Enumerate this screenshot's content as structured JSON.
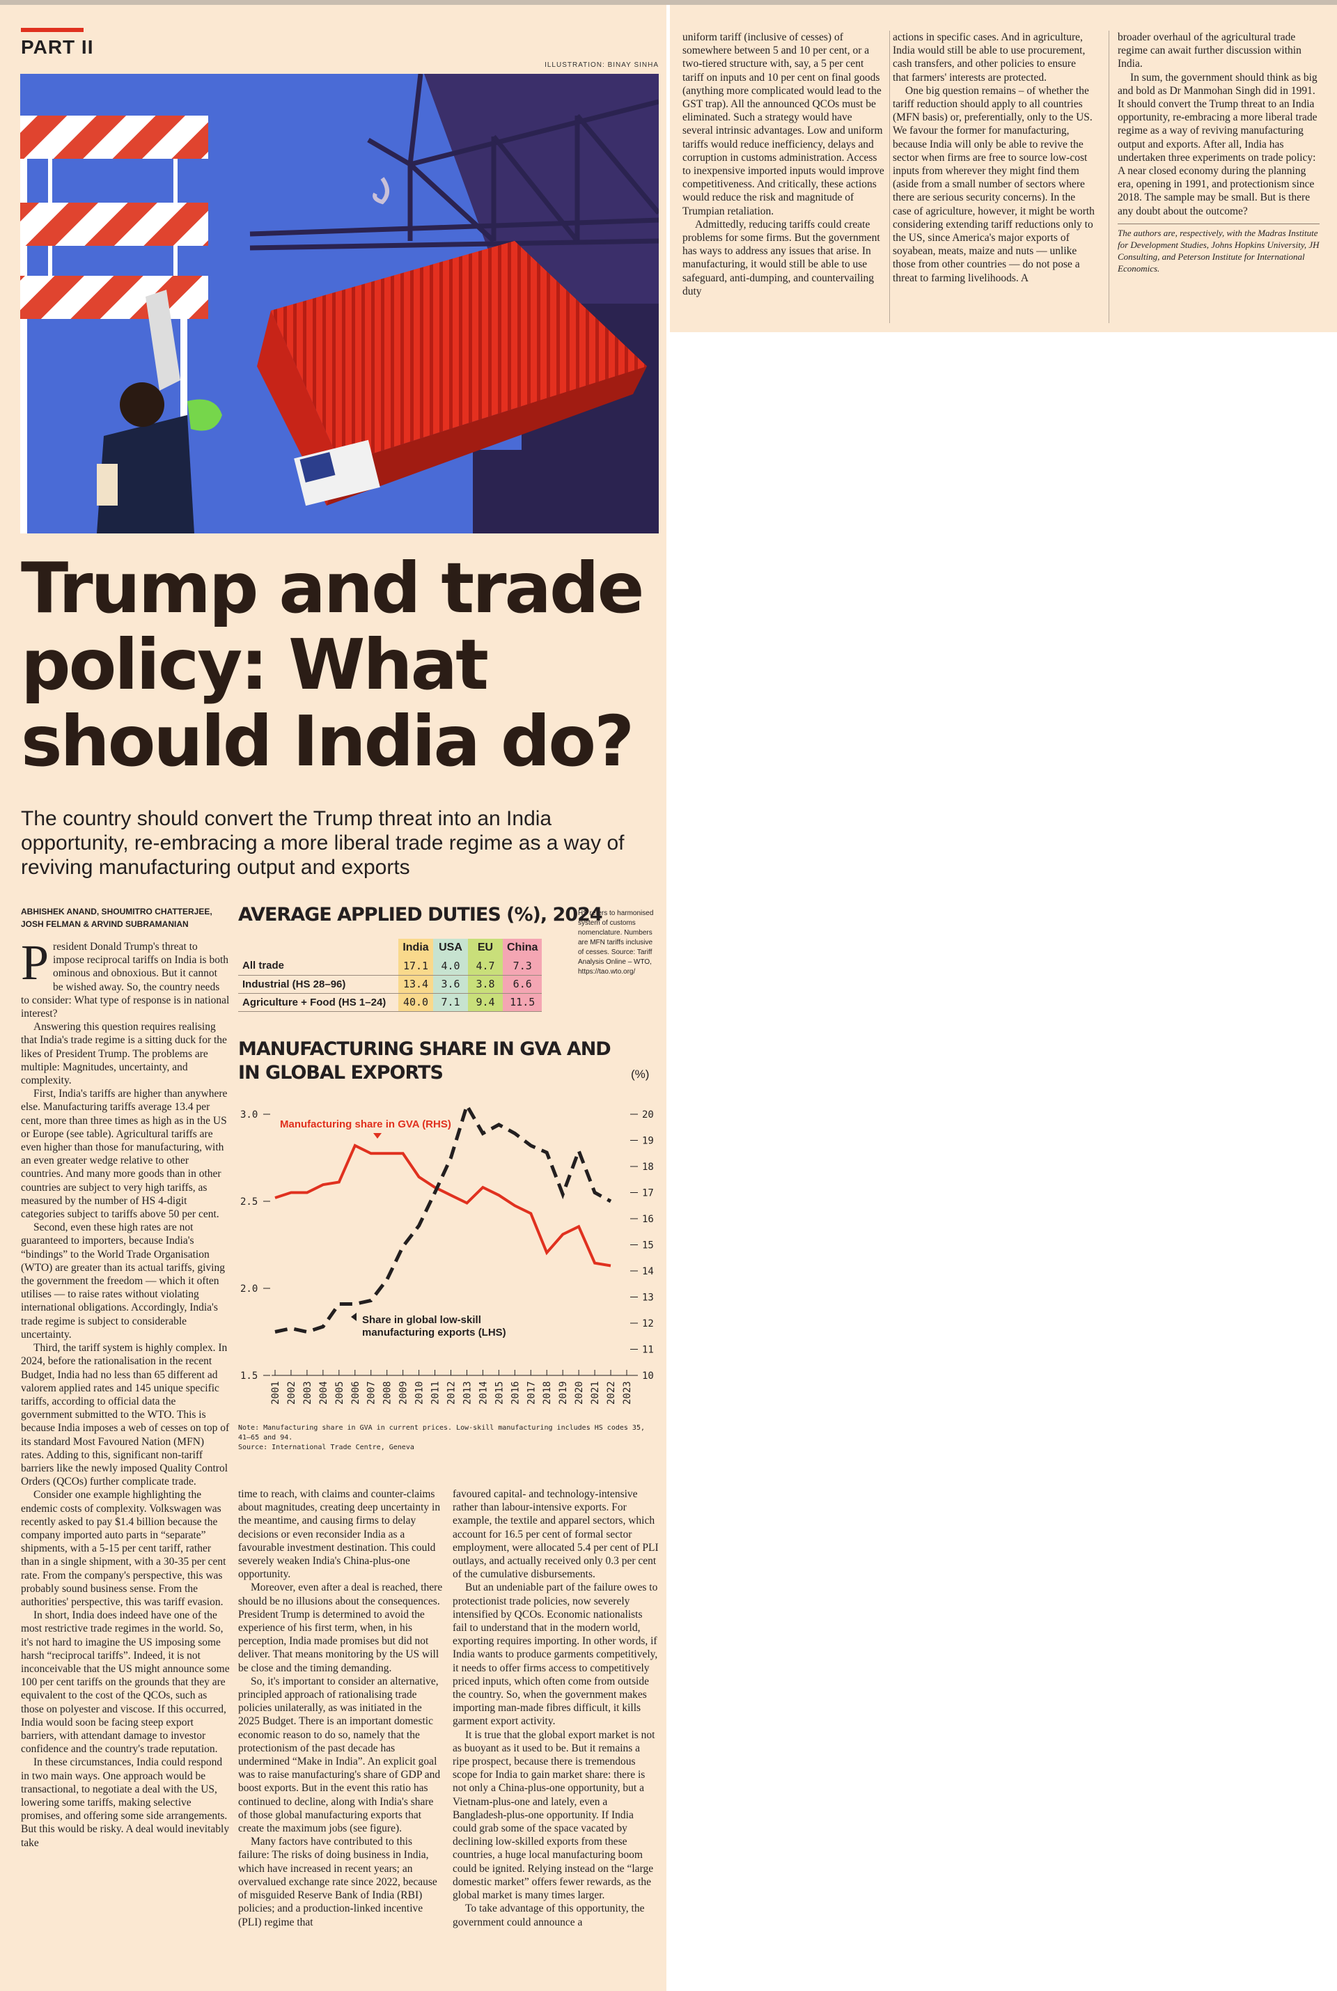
{
  "section": {
    "part": "PART II",
    "illustration_credit": "ILLUSTRATION: BINAY SINHA"
  },
  "article": {
    "headline": "Trump and trade policy: What should India do?",
    "standfirst": "The country should convert the Trump threat into an India opportunity, re-embracing a more liberal trade regime as a way of reviving manufacturing output and exports",
    "byline": "ABHISHEK ANAND, SHOUMITRO CHATTERJEE, JOSH FELMAN & ARVIND SUBRAMANIAN",
    "dropcap": "P",
    "col1": [
      "resident Donald Trump's threat to impose reciprocal tariffs on India is both ominous and obnoxious. But it cannot be wished away. So, the country needs to consider: What type of response is in national interest?",
      "Answering this question requires realising that India's trade regime is a sitting duck for the likes of President Trump. The problems are multiple: Magnitudes, uncertainty, and complexity.",
      "First, India's tariffs are higher than anywhere else. Manufacturing tariffs average 13.4 per cent, more than three times as high as in the US or Europe (see table). Agricultural tariffs are even higher than those for manufacturing, with an even greater wedge relative to other countries. And many more goods than in other countries are subject to very high tariffs, as measured by the number of HS 4-digit categories subject to tariffs above 50 per cent.",
      "Second, even these high rates are not guaranteed to importers, because India's “bindings” to the World Trade Organisation (WTO) are greater than its actual tariffs, giving the government the freedom — which it often utilises — to raise rates without violating international obligations. Accordingly, India's trade regime is subject to considerable uncertainty.",
      "Third, the tariff system is highly complex. In 2024, before the rationalisation in the recent Budget, India had no less than 65 different ad valorem applied rates and 145 unique specific tariffs, according to official data the government submitted to the WTO. This is because India imposes a web of cesses on top of its standard Most Favoured Nation (MFN) rates. Adding to this, significant non-tariff barriers like the newly imposed Quality Control Orders (QCOs) further complicate trade.",
      "Consider one example highlighting the endemic costs of complexity. Volkswagen was recently asked to pay $1.4 billion because the company imported auto parts in “separate” shipments, with a 5-15 per cent tariff, rather than in a single shipment, with a 30-35 per cent rate. From the company's perspective, this was probably sound business sense. From the authorities' perspective, this was tariff evasion.",
      "In short, India does indeed have one of the most restrictive trade regimes in the world. So, it's not hard to imagine the US imposing some harsh “reciprocal tariffs”. Indeed, it is not inconceivable that the US might announce some 100 per cent tariffs on the grounds that they are equivalent to the cost of the QCOs, such as those on polyester and viscose. If this occurred, India would soon be facing steep export barriers, with attendant damage to investor confidence and the country's trade reputation.",
      "In these circumstances, India could respond in two main ways. One approach would be transactional, to negotiate a deal with the US, lowering some tariffs, making selective promises, and offering some side arrangements. But this would be risky. A deal would inevitably take"
    ],
    "col2": [
      "time to reach, with claims and counter-claims about magnitudes, creating deep uncertainty in the meantime, and causing firms to delay decisions or even reconsider India as a favourable investment destination. This could severely weaken India's China-plus-one opportunity.",
      "Moreover, even after a deal is reached, there should be no illusions about the consequences. President Trump is determined to avoid the experience of his first term, when, in his perception, India made promises but did not deliver. That means monitoring by the US will be close and the timing demanding.",
      "So, it's important to consider an alternative, principled approach of rationalising trade policies unilaterally, as was initiated in the 2025 Budget. There is an important domestic economic reason to do so, namely that the protectionism of the past decade has undermined “Make in India”. An explicit goal was to raise manufacturing's share of GDP and boost exports. But in the event this ratio has continued to decline, along with India's share of those global manufacturing exports that create the maximum jobs (see figure).",
      "Many factors have contributed to this failure: The risks of doing business in India, which have increased in recent years; an overvalued exchange rate since 2022, because of misguided Reserve Bank of India (RBI) policies; and a production-linked incentive (PLI) regime that"
    ],
    "col3": [
      "favoured capital- and technology-intensive rather than labour-intensive exports. For example, the textile and apparel sectors, which account for 16.5 per cent of formal sector employment, were allocated 5.4 per cent of PLI outlays, and actually received only 0.3 per cent of the cumulative disbursements.",
      "But an undeniable part of the failure owes to protectionist trade policies, now severely intensified by QCOs. Economic nationalists fail to understand that in the modern world, exporting requires importing. In other words, if India wants to produce garments competitively, it needs to offer firms access to competitively priced inputs, which often come from outside the country. So, when the government makes importing man-made fibres difficult, it kills garment export activity.",
      "It is true that the global export market is not as buoyant as it used to be. But it remains a ripe prospect, because there is tremendous scope for India to gain market share: there is not only a China-plus-one opportunity, but a Vietnam-plus-one and lately, even a Bangladesh-plus-one opportunity. If India could grab some of the space vacated by declining low-skilled exports from these countries, a huge local manufacturing boom could be ignited. Relying instead on the “large domestic market” offers fewer rewards, as the global market is many times larger.",
      "To take advantage of this opportunity, the government could announce a"
    ],
    "r1": [
      "uniform tariff (inclusive of cesses) of somewhere between 5 and 10 per cent, or a two-tiered structure with, say, a 5 per cent tariff on inputs and 10 per cent on final goods (anything more complicated would lead to the GST trap). All the announced QCOs must be eliminated. Such a strategy would have several intrinsic advantages. Low and uniform tariffs would reduce inefficiency, delays and corruption in customs administration. Access to inexpensive imported inputs would improve competitiveness. And critically, these actions would reduce the risk and magnitude of Trumpian retaliation.",
      "Admittedly, reducing tariffs could create problems for some firms. But the government has ways to address any issues that arise. In manufacturing, it would still be able to use safeguard, anti-dumping, and countervailing duty"
    ],
    "r2": [
      "actions in specific cases. And in agriculture, India would still be able to use procurement, cash transfers, and other policies to ensure that farmers' interests are protected.",
      "One big question remains – of whether the tariff reduction should apply to all countries (MFN basis) or, preferentially, only to the US. We favour the former for manufacturing, because India will only be able to revive the sector when firms are free to source low-cost inputs from wherever they might find them (aside from a small number of sectors where there are serious security concerns). In the case of agriculture, however, it might be worth considering extending tariff reductions only to the US, since America's major exports of soyabean, meats, maize and nuts — unlike those from other countries — do not pose a threat to farming livelihoods. A"
    ],
    "r3": [
      "broader overhaul of the agricultural trade regime can await further discussion within India.",
      "In sum, the government should think as big and bold as Dr Manmohan Singh did in 1991. It should convert the Trump threat to an India opportunity, re-embracing a more liberal trade regime as a way of reviving manufacturing output and exports. After all, India has undertaken three experiments on trade policy: A near closed economy during the planning era, opening in 1991, and protectionism since 2018. The sample may be small. But is there any doubt about the outcome?"
    ],
    "bio": "The authors are, respectively, with the Madras Institute for Development Studies, Johns Hopkins University, JH Consulting, and Peterson Institute for International Economics."
  },
  "duties_table": {
    "title": "AVERAGE APPLIED DUTIES (%), 2024",
    "note": "HS refers to harmonised system of customs nomenclature. Numbers are MFN tariffs inclusive of cesses. Source: Tariff Analysis Online – WTO, https://tao.wto.org/",
    "columns": [
      "India",
      "USA",
      "EU",
      "China"
    ],
    "rows": [
      {
        "label": "All trade",
        "values": [
          "17.1",
          "4.0",
          "4.7",
          "7.3"
        ]
      },
      {
        "label": "Industrial (HS 28–96)",
        "values": [
          "13.4",
          "3.6",
          "3.8",
          "6.6"
        ]
      },
      {
        "label": "Agriculture + Food (HS 1–24)",
        "values": [
          "40.0",
          "7.1",
          "9.4",
          "11.5"
        ]
      }
    ],
    "colors": {
      "India": "#f9d98c",
      "USA": "#c7e3d0",
      "EU": "#c9df7a",
      "China": "#f4a6b3"
    }
  },
  "chart_data": {
    "type": "line",
    "title": "MANUFACTURING SHARE IN GVA AND IN GLOBAL EXPORTS",
    "unit": "(%)",
    "x": [
      "2001",
      "2002",
      "2003",
      "2004",
      "2005",
      "2006",
      "2007",
      "2008",
      "2009",
      "2010",
      "2011",
      "2012",
      "2013",
      "2014",
      "2015",
      "2016",
      "2017",
      "2018",
      "2019",
      "2020",
      "2021",
      "2022",
      "2023"
    ],
    "left_axis": {
      "ticks": [
        "1.5",
        "2.0",
        "2.5",
        "3.0"
      ],
      "range": [
        1.5,
        3.0
      ]
    },
    "right_axis": {
      "ticks": [
        "10",
        "11",
        "12",
        "13",
        "14",
        "15",
        "16",
        "17",
        "18",
        "19",
        "20"
      ],
      "range": [
        10,
        20
      ]
    },
    "series": [
      {
        "name": "Manufacturing share in GVA (RHS)",
        "axis": "right",
        "color": "#e0311f",
        "style": "solid",
        "values": [
          16.8,
          17.0,
          17.0,
          17.3,
          17.4,
          18.8,
          18.5,
          18.5,
          18.5,
          17.6,
          17.2,
          16.9,
          16.6,
          17.2,
          16.9,
          16.5,
          16.2,
          14.7,
          15.4,
          15.7,
          14.3,
          14.2,
          null
        ]
      },
      {
        "name": "Share in global low-skill manufacturing exports (LHS)",
        "axis": "left",
        "color": "#231f20",
        "style": "dashed",
        "values": [
          1.75,
          1.77,
          1.75,
          1.78,
          1.91,
          1.91,
          1.93,
          2.05,
          2.24,
          2.36,
          2.55,
          2.75,
          3.05,
          2.89,
          2.94,
          2.89,
          2.82,
          2.78,
          2.54,
          2.79,
          2.55,
          2.5,
          null
        ]
      }
    ],
    "note": "Note: Manufacturing share in GVA in current prices. Low-skill manufacturing includes HS codes 35, 41–65 and 94.",
    "source": "Source: International Trade Centre, Geneva"
  }
}
